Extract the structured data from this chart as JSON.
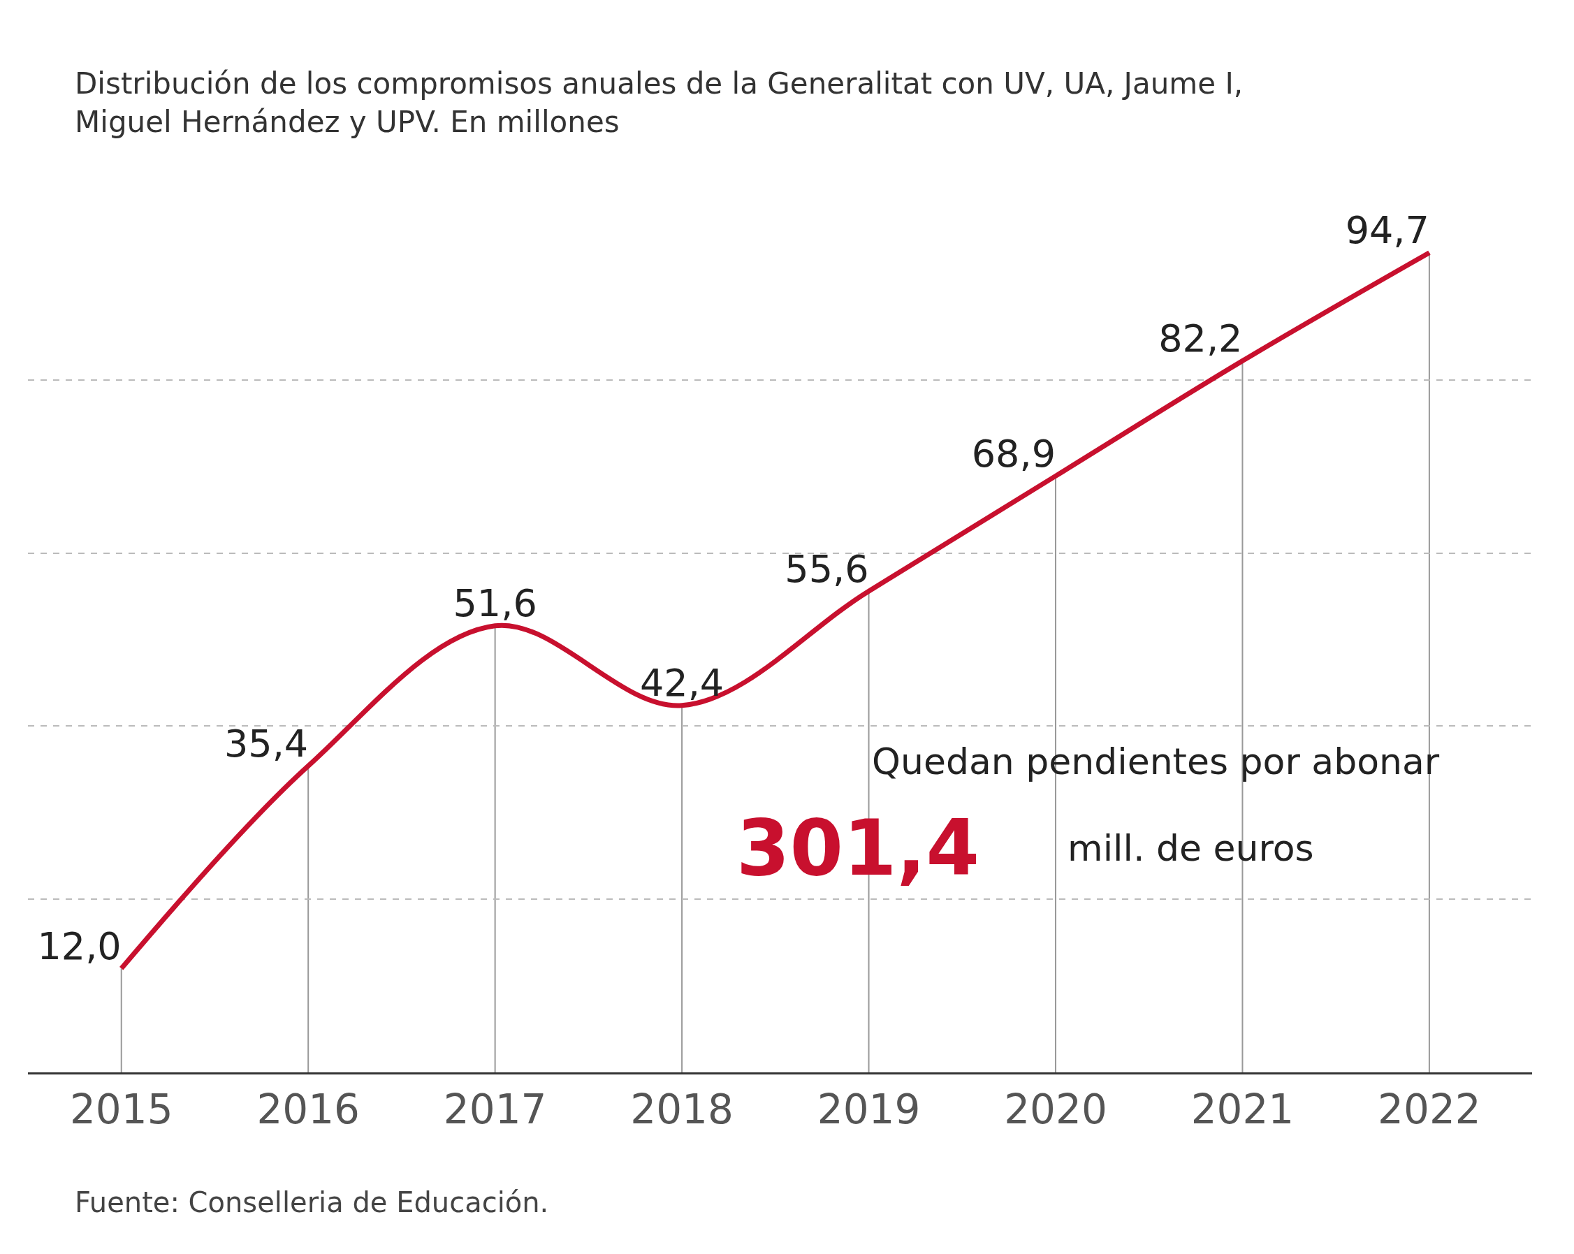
{
  "chart_data": {
    "type": "line",
    "subtitle": "Distribución de los compromisos anuales de la Generalitat con UV, UA, Jaume I,\nMiguel Hernández y UPV. En millones",
    "categories": [
      "2015",
      "2016",
      "2017",
      "2018",
      "2019",
      "2020",
      "2021",
      "2022"
    ],
    "series": [
      {
        "color": "#c8102e",
        "values": [
          12.0,
          35.4,
          51.6,
          42.4,
          55.6,
          68.9,
          82.2,
          94.7
        ],
        "value_labels": [
          "12,0",
          "35,4",
          "51,6",
          "42,4",
          "55,6",
          "68,9",
          "82,2",
          "94,7"
        ]
      }
    ],
    "yticks": [
      {
        "value": 20,
        "label": null
      },
      {
        "value": 40,
        "label": null
      },
      {
        "value": 60,
        "label": null
      },
      {
        "value": 80,
        "label": null
      }
    ],
    "tick_labels": "x",
    "grid": true,
    "marker": "none",
    "line_style": "solid",
    "annotations": [
      "Quedan pendientes por abonar",
      "301,4",
      "mill. de euros",
      "Fuente: Conselleria de Educación."
    ]
  }
}
